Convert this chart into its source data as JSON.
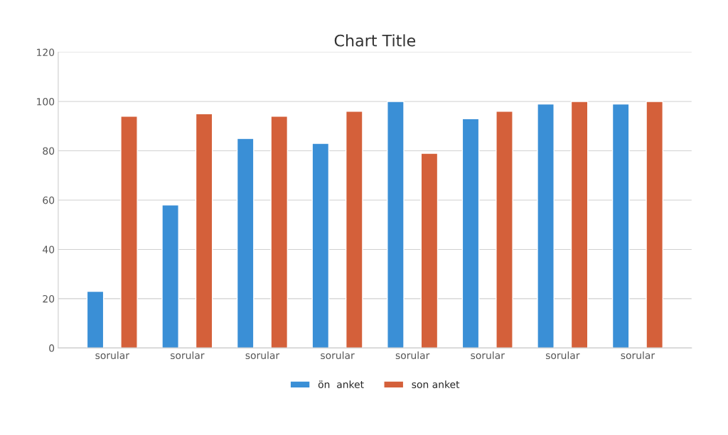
{
  "chart_data": {
    "type": "bar",
    "title": "Chart Title",
    "categories": [
      "sorular",
      "sorular",
      "sorular",
      "sorular",
      "sorular",
      "sorular",
      "sorular",
      "sorular"
    ],
    "series": [
      {
        "name": "ön  anket",
        "color": "#3a8fd6",
        "values": [
          23,
          58,
          85,
          83,
          100,
          93,
          99,
          99
        ]
      },
      {
        "name": "son anket",
        "color": "#d4603a",
        "values": [
          94,
          95,
          94,
          96,
          79,
          96,
          100,
          100
        ]
      }
    ],
    "ylim": [
      0,
      120
    ],
    "yticks": [
      0,
      20,
      40,
      60,
      80,
      100,
      120
    ],
    "grid": "y",
    "legend": "bottom"
  }
}
